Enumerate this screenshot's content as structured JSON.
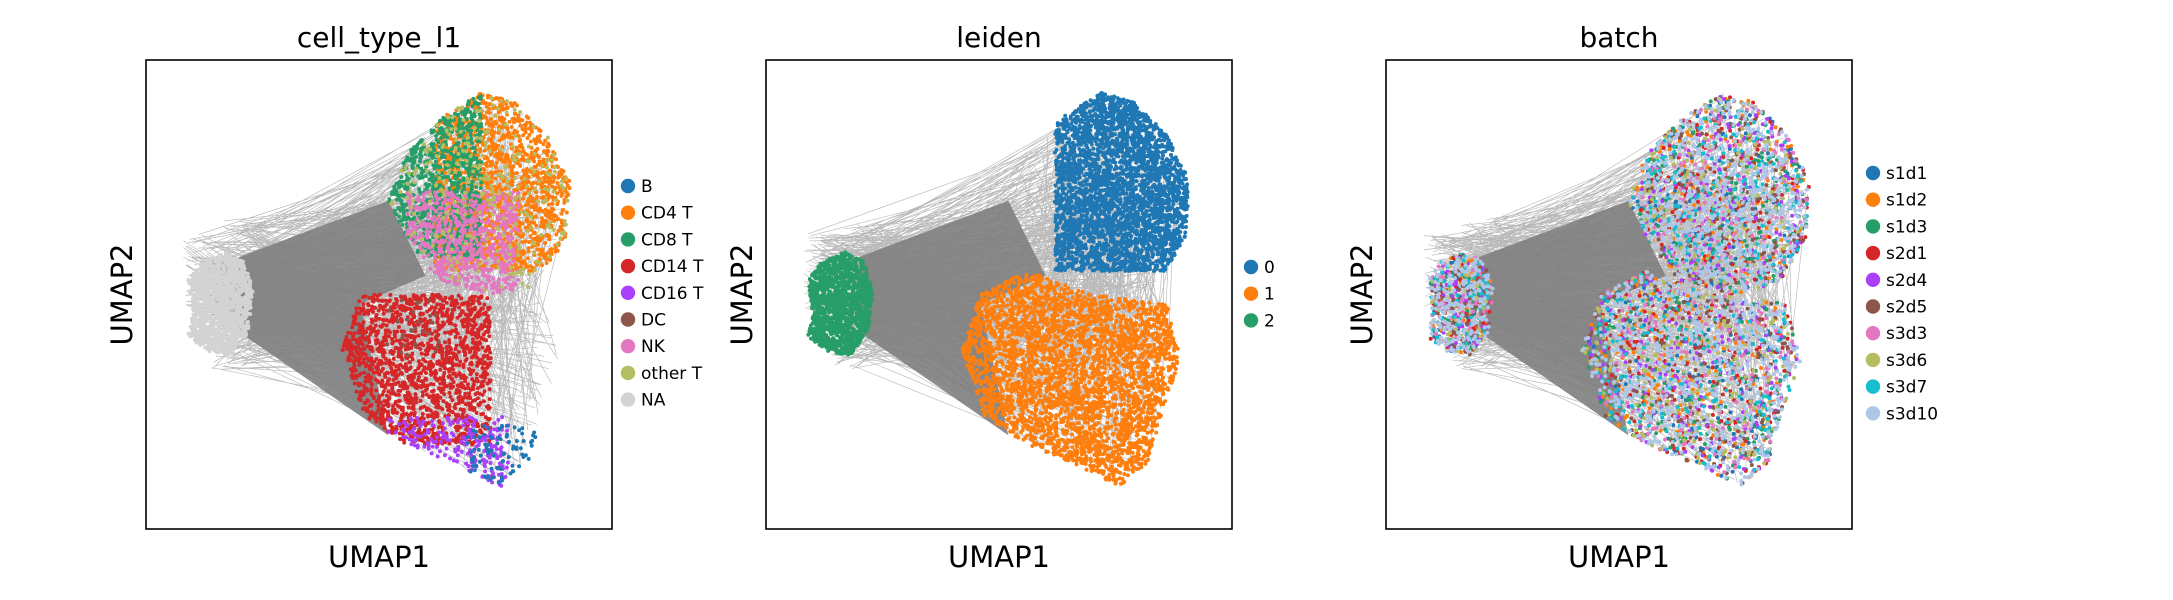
{
  "chart_data": [
    {
      "type": "scatter",
      "title": "cell_type_l1",
      "xlabel": "UMAP1",
      "ylabel": "UMAP2",
      "grid": false,
      "ticks": false,
      "legend_position": "right",
      "series": [
        {
          "name": "B",
          "color": "#1f77b4",
          "region": "bottom-right tip"
        },
        {
          "name": "CD4 T",
          "color": "#ff7f0e",
          "region": "top-right lobe"
        },
        {
          "name": "CD8 T",
          "color": "#279e68",
          "region": "upper-left of top lobe"
        },
        {
          "name": "CD14 T",
          "color": "#d62728",
          "region": "lower-center lobe"
        },
        {
          "name": "CD16 T",
          "color": "#aa40fc",
          "region": "bottom of lower lobe"
        },
        {
          "name": "DC",
          "color": "#8c564b",
          "region": "center"
        },
        {
          "name": "NK",
          "color": "#e377c2",
          "region": "center of upper lobe"
        },
        {
          "name": "other T",
          "color": "#b5bd61",
          "region": "scattered"
        },
        {
          "name": "NA",
          "color": "#d3d3d3",
          "region": "left cluster"
        }
      ]
    },
    {
      "type": "scatter",
      "title": "leiden",
      "xlabel": "UMAP1",
      "ylabel": "UMAP2",
      "grid": false,
      "ticks": false,
      "legend_position": "right",
      "series": [
        {
          "name": "0",
          "color": "#1f77b4",
          "region": "top-right lobe"
        },
        {
          "name": "1",
          "color": "#ff7f0e",
          "region": "lower lobe"
        },
        {
          "name": "2",
          "color": "#279e68",
          "region": "left cluster"
        }
      ]
    },
    {
      "type": "scatter",
      "title": "batch",
      "xlabel": "UMAP1",
      "ylabel": "UMAP2",
      "grid": false,
      "ticks": false,
      "legend_position": "right",
      "series": [
        {
          "name": "s1d1",
          "color": "#1f77b4"
        },
        {
          "name": "s1d2",
          "color": "#ff7f0e"
        },
        {
          "name": "s1d3",
          "color": "#279e68"
        },
        {
          "name": "s2d1",
          "color": "#d62728"
        },
        {
          "name": "s2d4",
          "color": "#aa40fc"
        },
        {
          "name": "s2d5",
          "color": "#8c564b"
        },
        {
          "name": "s3d3",
          "color": "#e377c2"
        },
        {
          "name": "s3d6",
          "color": "#b5bd61"
        },
        {
          "name": "s3d7",
          "color": "#17becf"
        },
        {
          "name": "s3d10",
          "color": "#aec7e8"
        }
      ]
    }
  ],
  "colors": {
    "edges": "#808080",
    "frame": "#000000"
  }
}
